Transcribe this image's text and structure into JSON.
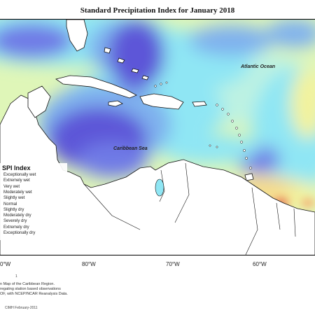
{
  "title": "Standard Precipitation Index for January 2018",
  "map": {
    "labels": {
      "atlantic": "Atlantic Ocean",
      "caribbean": "Caribbean Sea"
    },
    "longitude_ticks": [
      "0°W",
      "80°W",
      "70°W",
      "60°W"
    ]
  },
  "legend": {
    "title": "SPI Index",
    "items": [
      {
        "label": "Exceptionally wet",
        "color": "#5d56d8"
      },
      {
        "label": "Extremely wet",
        "color": "#6f7ae6"
      },
      {
        "label": "Very wet",
        "color": "#7fb1ee"
      },
      {
        "label": "Moderately wet",
        "color": "#8fe6f4"
      },
      {
        "label": "Slightly wet",
        "color": "#bdf2e2"
      },
      {
        "label": "Normal",
        "color": "#dff6b8"
      },
      {
        "label": "Slightly dry",
        "color": "#f3f39d"
      },
      {
        "label": "Moderately dry",
        "color": "#f6d98a"
      },
      {
        "label": "Severely dry",
        "color": "#f4ad72"
      },
      {
        "label": "Extremely dry",
        "color": "#ee6a5a"
      },
      {
        "label": "Exceptionally dry",
        "color": "#d93b3b"
      }
    ]
  },
  "credits": {
    "tick": "1",
    "lines": [
      "n Map of the Caribbean Region.",
      "regating station based observations",
      "OF, with NCEP/NCAR Reanalysis Data."
    ],
    "date": "CIMH February-2011"
  }
}
